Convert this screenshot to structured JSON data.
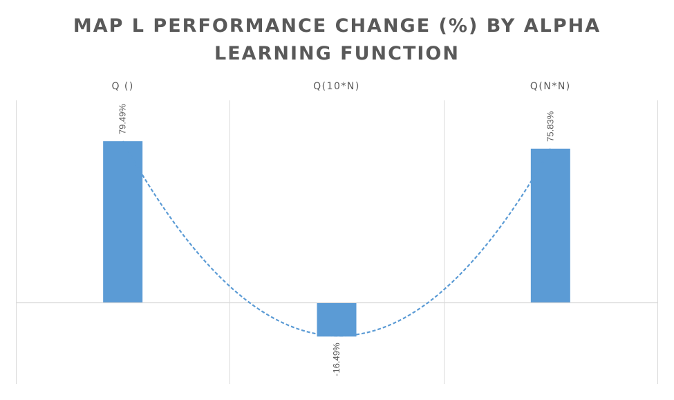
{
  "chart_data": {
    "type": "bar",
    "title_lines": [
      "MAP L PERFORMANCE CHANGE (%) BY ALPHA",
      "LEARNING FUNCTION"
    ],
    "categories": [
      "Q ()",
      "Q(10*N)",
      "Q(N*N)"
    ],
    "values": [
      79.49,
      -16.49,
      75.83
    ],
    "data_labels": [
      "79.49%",
      "-16.49%",
      "75.83%"
    ],
    "ylim": [
      -40,
      100
    ],
    "xlabel": "",
    "ylabel": "",
    "grid": "vertical",
    "trendline": "polynomial dashed",
    "legend": "none",
    "colors": {
      "bar": "#5B9BD5",
      "trendline": "#5B9BD5",
      "grid": "#d9d9d9",
      "text": "#595959"
    }
  }
}
